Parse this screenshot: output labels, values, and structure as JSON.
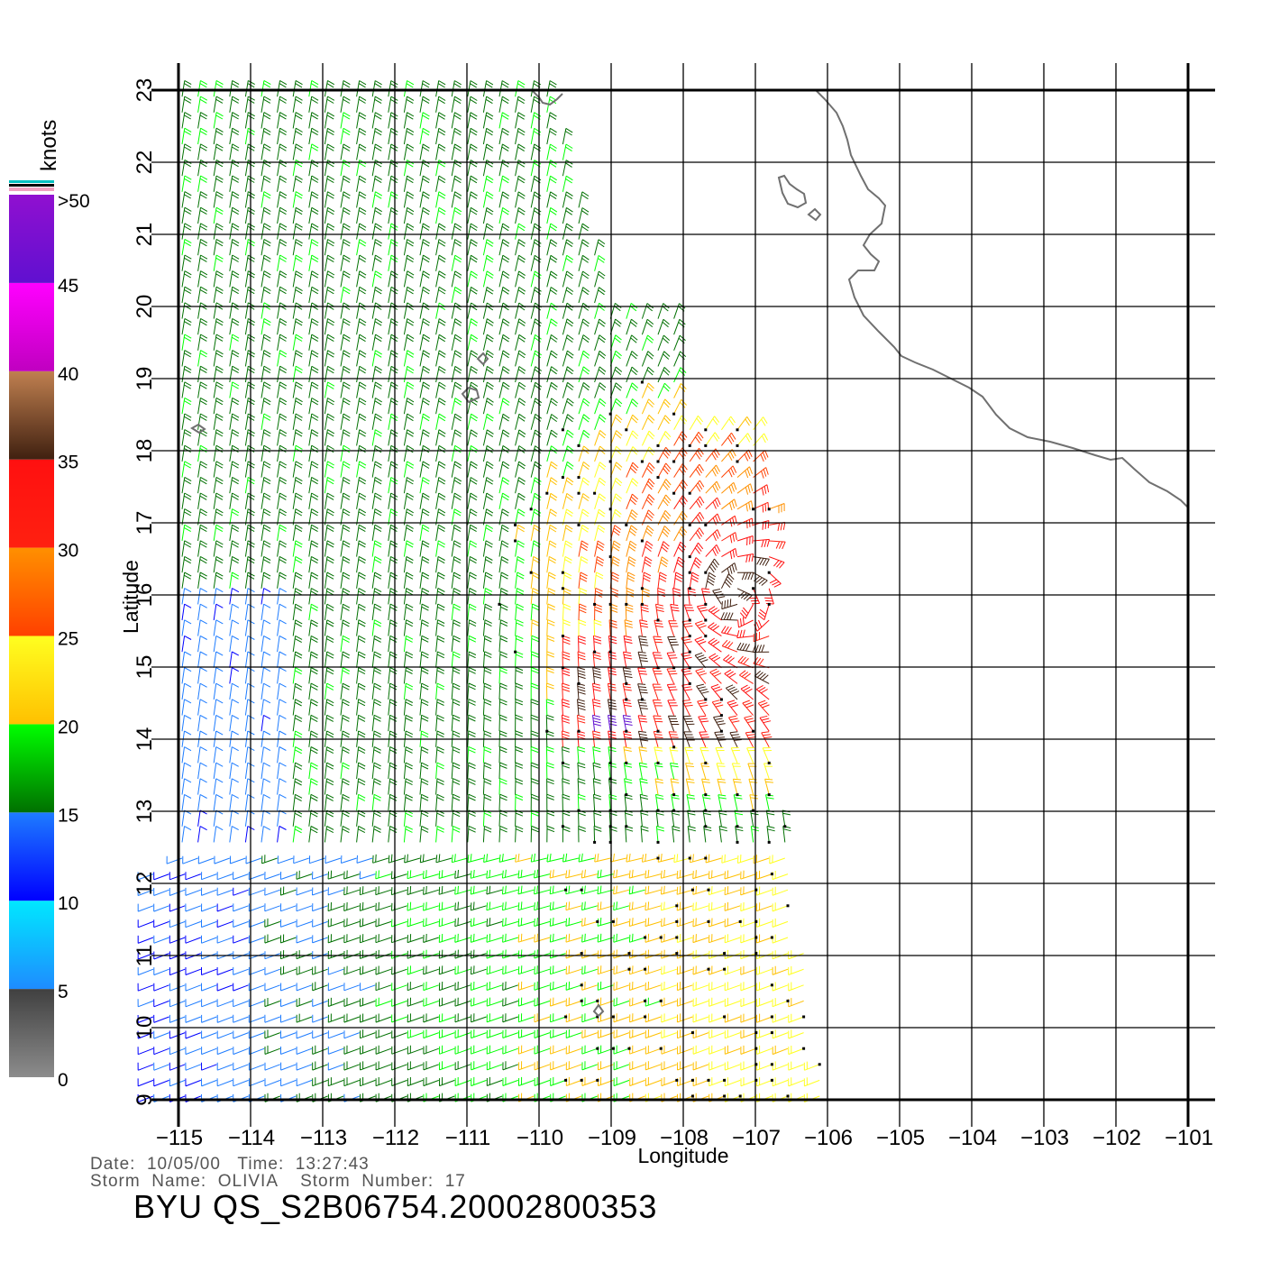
{
  "title": "BYU  QS_S2B06754.20002800353",
  "info": {
    "date_line": "Date:  10/05/00   Time:  13:27:43",
    "storm_line": "Storm  Name:  OLIVIA    Storm  Number:  17"
  },
  "axes": {
    "xlabel": "Longitude",
    "ylabel": "Latitude",
    "lon_range": [
      -115,
      -101
    ],
    "lat_range": [
      9,
      23
    ],
    "lon_ticks": [
      "-115",
      "-114",
      "-113",
      "-112",
      "-111",
      "-110",
      "-109",
      "-108",
      "-107",
      "-106",
      "-105",
      "-104",
      "-103",
      "-102",
      "-101"
    ],
    "lat_ticks": [
      "9",
      "10",
      "11",
      "12",
      "13",
      "14",
      "15",
      "16",
      "17",
      "18",
      "19",
      "20",
      "21",
      "22",
      "23"
    ],
    "grid": true
  },
  "colorbar": {
    "units": "knots",
    "labels": [
      "0",
      "5",
      "10",
      "15",
      "20",
      "25",
      "30",
      "35",
      "40",
      "45",
      ">50"
    ],
    "segments": [
      {
        "from": 0,
        "to": 5,
        "top": "#404040",
        "bottom": "#8c8c8c"
      },
      {
        "from": 5,
        "to": 10,
        "top": "#00e8ff",
        "bottom": "#1e8cff"
      },
      {
        "from": 10,
        "to": 15,
        "top": "#1e7cff",
        "bottom": "#0000ff"
      },
      {
        "from": 15,
        "to": 20,
        "top": "#00ff00",
        "bottom": "#007000"
      },
      {
        "from": 20,
        "to": 25,
        "top": "#ffff20",
        "bottom": "#ffc000"
      },
      {
        "from": 25,
        "to": 30,
        "top": "#ff9000",
        "bottom": "#ff4000"
      },
      {
        "from": 30,
        "to": 35,
        "top": "#ff1010",
        "bottom": "#ff2010"
      },
      {
        "from": 35,
        "to": 40,
        "top": "#c08050",
        "bottom": "#402010"
      },
      {
        "from": 40,
        "to": 45,
        "top": "#ff00ff",
        "bottom": "#c000c0"
      },
      {
        "from": 45,
        "to": 50,
        "top": "#9010d0",
        "bottom": "#6010d0"
      }
    ]
  },
  "storm_center": {
    "lon": -107.3,
    "lat": 16.0
  },
  "colors": {
    "coastline": "#707070",
    "grid": "#000000",
    "rain_flag": "#000000"
  }
}
